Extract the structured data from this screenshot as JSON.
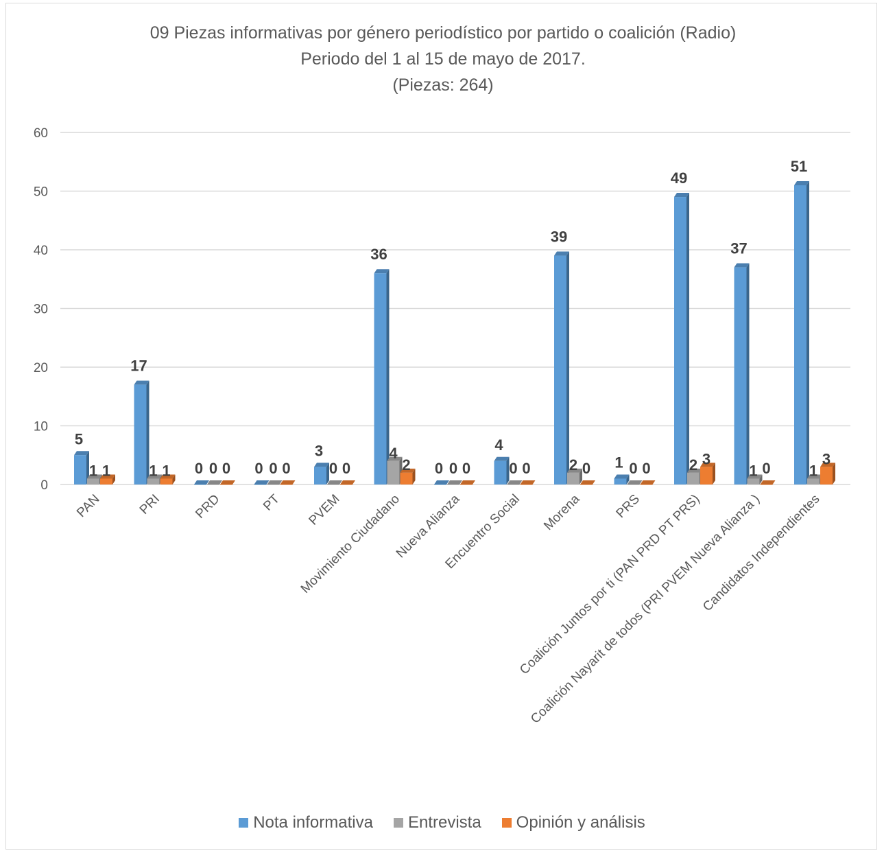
{
  "chart_data": {
    "type": "bar",
    "title": "09 Piezas informativas por género periodístico por partido o coalición (Radio)",
    "subtitle": "Periodo del 1 al 15 de mayo de 2017.",
    "subtitle2": "(Piezas: 264)",
    "xlabel": "",
    "ylabel": "",
    "ylim": [
      0,
      60
    ],
    "yticks": [
      0,
      10,
      20,
      30,
      40,
      50,
      60
    ],
    "grid": true,
    "legend_position": "bottom",
    "categories": [
      "PAN",
      "PRI",
      "PRD",
      "PT",
      "PVEM",
      "Movimiento Ciudadano",
      "Nueva Alianza",
      "Encuentro Social",
      "Morena",
      "PRS",
      "Coalición Juntos por ti (PAN PRD PT PRS)",
      "Coalición Nayarit de todos (PRI PVEM Nueva Alianza )",
      "Candidatos Independientes"
    ],
    "series": [
      {
        "name": "Nota informativa",
        "color": "#5b9bd5",
        "values": [
          5,
          17,
          0,
          0,
          3,
          36,
          0,
          4,
          39,
          1,
          49,
          37,
          51
        ]
      },
      {
        "name": "Entrevista",
        "color": "#a5a5a5",
        "values": [
          1,
          1,
          0,
          0,
          0,
          4,
          0,
          0,
          2,
          0,
          2,
          1,
          1
        ]
      },
      {
        "name": "Opinión y análisis",
        "color": "#ed7d31",
        "values": [
          1,
          1,
          0,
          0,
          0,
          2,
          0,
          0,
          0,
          0,
          3,
          0,
          3
        ]
      }
    ]
  }
}
